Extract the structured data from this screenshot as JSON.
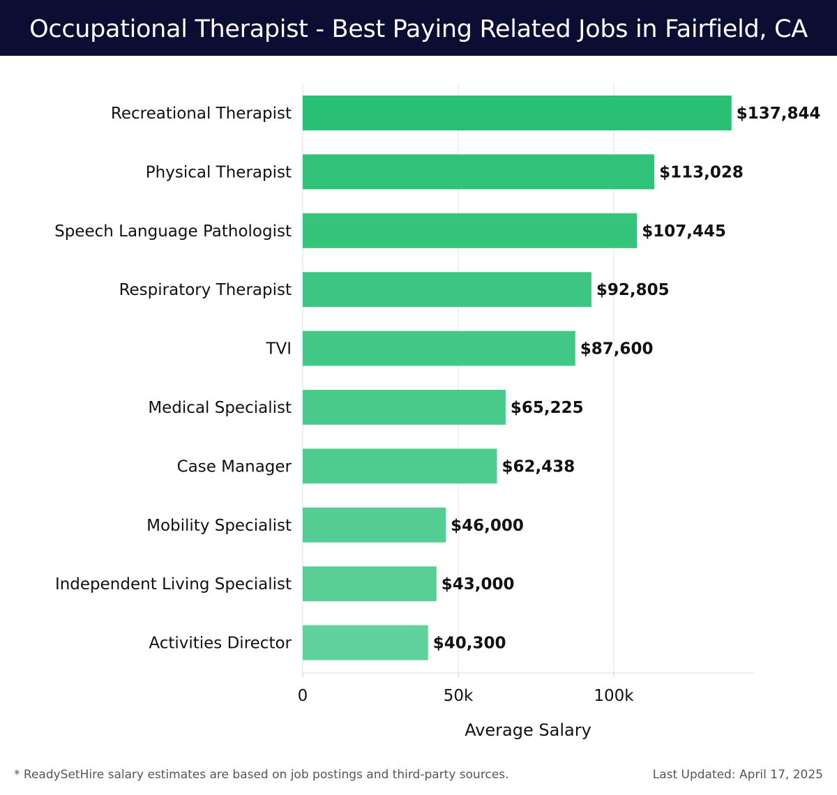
{
  "header": {
    "title": "Occupational Therapist - Best Paying Related Jobs in Fairfield, CA"
  },
  "chart_data": {
    "type": "bar",
    "orientation": "horizontal",
    "title": "Occupational Therapist - Best Paying Related Jobs in Fairfield, CA",
    "xlabel": "Average Salary",
    "ylabel": "",
    "xlim": [
      0,
      145000
    ],
    "xticks": [
      0,
      50000,
      100000
    ],
    "xtick_labels": [
      "0",
      "50k",
      "100k"
    ],
    "grid": true,
    "categories": [
      "Recreational Therapist",
      "Physical Therapist",
      "Speech Language Pathologist",
      "Respiratory Therapist",
      "TVI",
      "Medical Specialist",
      "Case Manager",
      "Mobility Specialist",
      "Independent Living Specialist",
      "Activities Director"
    ],
    "values": [
      137844,
      113028,
      107445,
      92805,
      87600,
      65225,
      62438,
      46000,
      43000,
      40300
    ],
    "value_labels": [
      "$137,844",
      "$113,028",
      "$107,445",
      "$92,805",
      "$87,600",
      "$65,225",
      "$62,438",
      "$46,000",
      "$43,000",
      "$40,300"
    ],
    "colors": [
      "#2ac074",
      "#30c279",
      "#36c47d",
      "#3cc682",
      "#42c886",
      "#48ca8b",
      "#4ecb8f",
      "#53cd94",
      "#59cf98",
      "#5fd19d"
    ]
  },
  "footer": {
    "note": "* ReadySetHire salary estimates are based on job postings and third-party sources.",
    "updated": "Last Updated: April 17, 2025"
  }
}
